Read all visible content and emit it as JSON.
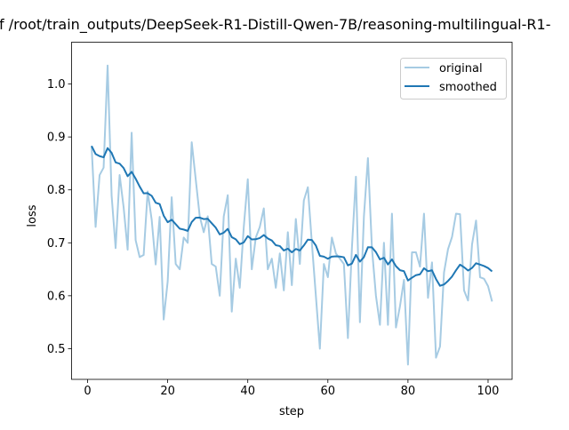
{
  "chart_data": {
    "type": "line",
    "title": "f /root/train_outputs/DeepSeek-R1-Distill-Qwen-7B/reasoning-multilingual-R1-",
    "xlabel": "step",
    "ylabel": "loss",
    "xlim": [
      -4,
      106
    ],
    "ylim": [
      0.442,
      1.079
    ],
    "xticks": [
      0,
      20,
      40,
      60,
      80,
      100
    ],
    "xtick_labels": [
      "0",
      "20",
      "40",
      "60",
      "80",
      "100"
    ],
    "yticks": [
      0.5,
      0.6,
      0.7,
      0.8,
      0.9,
      1.0
    ],
    "ytick_labels": [
      "0.5",
      "0.6",
      "0.7",
      "0.8",
      "0.9",
      "1.0"
    ],
    "grid": false,
    "legend_position": "top-right",
    "smoothing": 0.9,
    "x_start": 1,
    "series": [
      {
        "name": "original",
        "color": "#a6cbe3",
        "values": [
          0.883,
          0.73,
          0.828,
          0.842,
          1.035,
          0.789,
          0.69,
          0.828,
          0.767,
          0.687,
          0.908,
          0.705,
          0.673,
          0.677,
          0.797,
          0.744,
          0.659,
          0.749,
          0.555,
          0.627,
          0.786,
          0.66,
          0.65,
          0.71,
          0.7,
          0.89,
          0.82,
          0.75,
          0.72,
          0.75,
          0.66,
          0.655,
          0.6,
          0.75,
          0.79,
          0.57,
          0.67,
          0.615,
          0.73,
          0.82,
          0.65,
          0.71,
          0.73,
          0.765,
          0.65,
          0.67,
          0.615,
          0.68,
          0.61,
          0.72,
          0.62,
          0.745,
          0.66,
          0.78,
          0.805,
          0.7,
          0.6,
          0.5,
          0.66,
          0.635,
          0.71,
          0.68,
          0.67,
          0.66,
          0.52,
          0.69,
          0.825,
          0.55,
          0.75,
          0.86,
          0.69,
          0.6,
          0.545,
          0.7,
          0.545,
          0.755,
          0.54,
          0.58,
          0.63,
          0.47,
          0.682,
          0.682,
          0.655,
          0.755,
          0.596,
          0.663,
          0.483,
          0.504,
          0.644,
          0.688,
          0.711,
          0.755,
          0.754,
          0.61,
          0.591,
          0.697,
          0.742,
          0.635,
          0.632,
          0.618,
          0.589
        ]
      },
      {
        "name": "smoothed",
        "color": "#1f77b4",
        "derived_from": "original"
      }
    ]
  }
}
